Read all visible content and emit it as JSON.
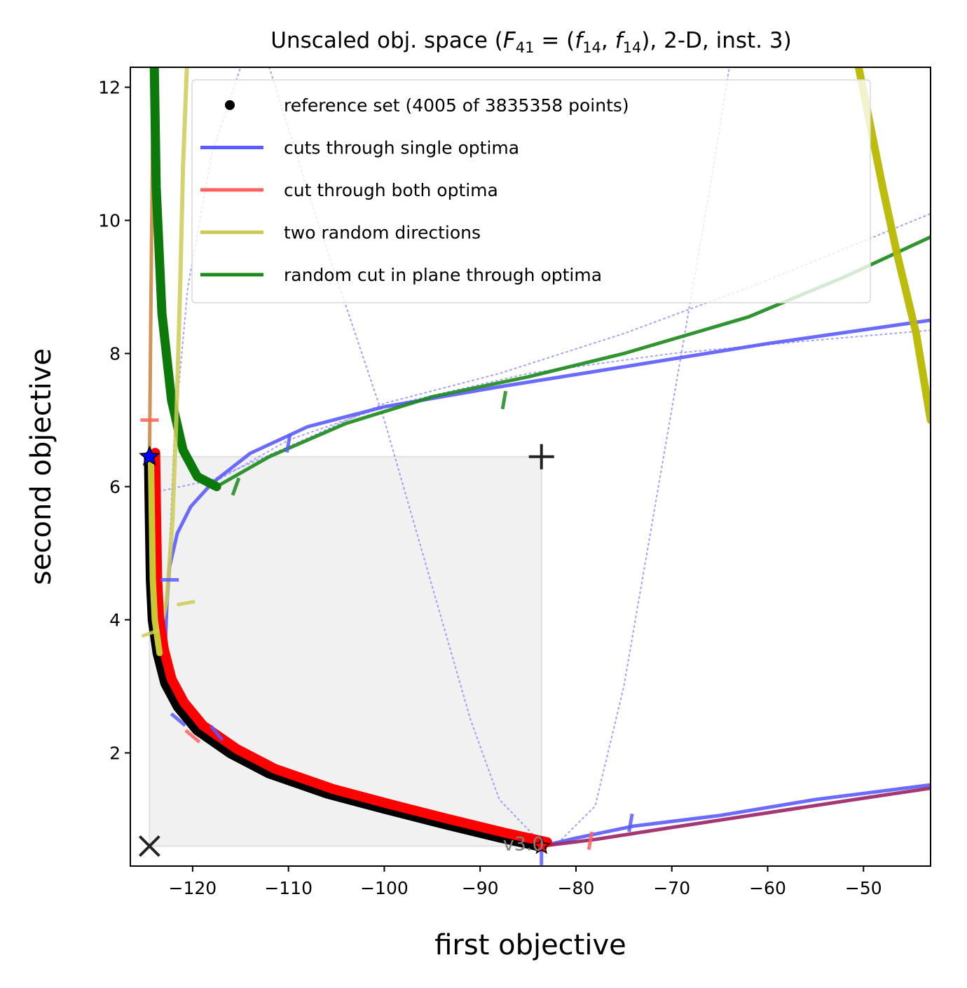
{
  "chart_data": {
    "type": "line",
    "title": "Unscaled obj. space (F41 = (f14, f14), 2-D, inst. 3)",
    "title_parts": {
      "prefix": "Unscaled obj. space (",
      "F": "F",
      "F_sub": "41",
      "eq": " = (",
      "f": "f",
      "f_sub": "14",
      "sep": ", ",
      "suffix": "), 2-D, inst. 3)"
    },
    "xlabel": "first objective",
    "ylabel": "second objective",
    "xlim": [
      -126.5,
      -43.0
    ],
    "ylim": [
      0.3,
      12.3
    ],
    "xticks": [
      -120,
      -110,
      -100,
      -90,
      -80,
      -70,
      -60,
      -50
    ],
    "xtick_labels": [
      "−120",
      "−110",
      "−100",
      "−90",
      "−80",
      "−70",
      "−60",
      "−50"
    ],
    "yticks": [
      2,
      4,
      6,
      8,
      10,
      12
    ],
    "ytick_labels": [
      "2",
      "4",
      "6",
      "8",
      "10",
      "12"
    ],
    "legend_position": "top-right",
    "legend": [
      {
        "label": "reference set (4005 of 3835358 points)",
        "style": "marker",
        "color": "#000000"
      },
      {
        "label": "cuts through single optima",
        "style": "line",
        "color": "#5b5bff"
      },
      {
        "label": "cut through both optima",
        "style": "line",
        "color": "#ff6060"
      },
      {
        "label": "two random directions",
        "style": "line",
        "color": "#cccc55"
      },
      {
        "label": "random cut in plane through optima",
        "style": "line",
        "color": "#1a8a1a"
      }
    ],
    "ideal_point": {
      "x": -124.5,
      "y": 0.6,
      "marker": "x"
    },
    "nadir_point": {
      "x": -83.6,
      "y": 6.45,
      "marker": "+"
    },
    "optimum_1": {
      "x": -124.5,
      "y": 6.45,
      "marker": "star",
      "color": "#0000ff"
    },
    "optimum_2": {
      "x": -83.6,
      "y": 0.6,
      "marker": "star",
      "color": "#ff0000"
    },
    "dominated_region": {
      "x": [
        -124.5,
        -83.6
      ],
      "y": [
        0.6,
        6.45
      ]
    },
    "version_label": "v3.0",
    "series": [
      {
        "name": "reference set (4005 of 3835358 points)",
        "kind": "pareto_front",
        "color": "#000000",
        "points": [
          [
            -124.5,
            6.45
          ],
          [
            -124.4,
            5.5
          ],
          [
            -124.3,
            4.6
          ],
          [
            -124.1,
            4.0
          ],
          [
            -123.6,
            3.5
          ],
          [
            -122.8,
            3.05
          ],
          [
            -121.5,
            2.7
          ],
          [
            -119.5,
            2.35
          ],
          [
            -116,
            2.0
          ],
          [
            -112,
            1.7
          ],
          [
            -106,
            1.4
          ],
          [
            -100,
            1.17
          ],
          [
            -94,
            0.95
          ],
          [
            -88,
            0.74
          ],
          [
            -83.6,
            0.6
          ]
        ]
      },
      {
        "name": "cuts through single optima",
        "kind": "cut_1",
        "color": "#5b5bff",
        "points": [
          [
            -122.9,
            3.4
          ],
          [
            -122.7,
            4.2
          ],
          [
            -122.4,
            4.8
          ],
          [
            -121.6,
            5.3
          ],
          [
            -120.2,
            5.7
          ],
          [
            -118,
            6.05
          ],
          [
            -114,
            6.5
          ],
          [
            -108,
            6.9
          ],
          [
            -100,
            7.2
          ],
          [
            -88,
            7.5
          ],
          [
            -75,
            7.8
          ],
          [
            -60,
            8.15
          ],
          [
            -43,
            8.5
          ]
        ]
      },
      {
        "name": "cuts through single optima",
        "kind": "cut_2",
        "color": "#5b5bff",
        "points": [
          [
            -83.6,
            0.6
          ],
          [
            -80,
            0.72
          ],
          [
            -74,
            0.9
          ],
          [
            -65,
            1.06
          ],
          [
            -55,
            1.3
          ],
          [
            -43,
            1.52
          ]
        ]
      },
      {
        "name": "cut through both optima",
        "kind": "cut_both_right",
        "color": "#9a2266",
        "points": [
          [
            -83.6,
            0.6
          ],
          [
            -78,
            0.7
          ],
          [
            -70,
            0.88
          ],
          [
            -60,
            1.1
          ],
          [
            -50,
            1.32
          ],
          [
            -43,
            1.47
          ]
        ]
      },
      {
        "name": "cut through both optima",
        "kind": "cut_both_left",
        "color": "#cc8844",
        "points": [
          [
            -124.5,
            6.45
          ],
          [
            -124.4,
            8.0
          ],
          [
            -124.3,
            9.5
          ],
          [
            -124.2,
            11.0
          ],
          [
            -124.1,
            12.3
          ]
        ]
      },
      {
        "name": "two random directions",
        "kind": "random_left",
        "color": "#cccc55",
        "points": [
          [
            -124.3,
            6.1
          ],
          [
            -124.2,
            5.0
          ],
          [
            -124.0,
            4.2
          ],
          [
            -123.4,
            3.8
          ],
          [
            -122.7,
            4.3
          ],
          [
            -122.1,
            5.5
          ],
          [
            -121.7,
            7.0
          ],
          [
            -121.3,
            9.0
          ],
          [
            -121.0,
            10.8
          ],
          [
            -120.6,
            12.3
          ]
        ]
      },
      {
        "name": "two random directions",
        "kind": "random_right",
        "color": "#b8b800",
        "points": [
          [
            -50.5,
            12.3
          ],
          [
            -48,
            10.5
          ],
          [
            -46.5,
            9.5
          ],
          [
            -44.5,
            8.3
          ],
          [
            -43,
            7.0
          ]
        ]
      },
      {
        "name": "random cut in plane through optima",
        "kind": "green_cut",
        "color": "#1a8a1a",
        "points": [
          [
            -124.0,
            12.3
          ],
          [
            -123.8,
            10.5
          ],
          [
            -123.2,
            8.6
          ],
          [
            -122.2,
            7.3
          ],
          [
            -121.0,
            6.55
          ],
          [
            -119.5,
            6.15
          ],
          [
            -117.5,
            6.0
          ],
          [
            -112,
            6.45
          ],
          [
            -104,
            6.95
          ],
          [
            -95,
            7.35
          ],
          [
            -85,
            7.65
          ],
          [
            -75,
            8.0
          ],
          [
            -62,
            8.55
          ],
          [
            -52,
            9.15
          ],
          [
            -43,
            9.75
          ]
        ]
      },
      {
        "name": "dotted cut 1",
        "kind": "dotted",
        "color": "#8a8aff",
        "points": [
          [
            -124.5,
            5.9
          ],
          [
            -118,
            6.1
          ],
          [
            -110,
            6.6
          ],
          [
            -100,
            7.25
          ],
          [
            -88,
            7.7
          ],
          [
            -75,
            8.3
          ],
          [
            -60,
            9.1
          ],
          [
            -43,
            10.1
          ]
        ]
      },
      {
        "name": "dotted cut 2",
        "kind": "dotted",
        "color": "#8a8aff",
        "points": [
          [
            -122.6,
            4.4
          ],
          [
            -121.9,
            6.8
          ],
          [
            -120.5,
            9.0
          ],
          [
            -118,
            11.0
          ],
          [
            -115,
            12.3
          ]
        ]
      },
      {
        "name": "dotted cut 3",
        "kind": "dotted",
        "color": "#8a8aff",
        "points": [
          [
            -112,
            12.3
          ],
          [
            -107,
            10.0
          ],
          [
            -100,
            7.0
          ],
          [
            -95,
            4.5
          ],
          [
            -91,
            2.5
          ],
          [
            -88,
            1.3
          ],
          [
            -84,
            0.7
          ]
        ]
      },
      {
        "name": "dotted cut 4",
        "kind": "dotted",
        "color": "#8a8aff",
        "points": [
          [
            -81.5,
            0.7
          ],
          [
            -78,
            1.2
          ],
          [
            -75,
            3.0
          ],
          [
            -72,
            5.5
          ],
          [
            -69,
            8.0
          ],
          [
            -66,
            10.5
          ],
          [
            -64,
            12.3
          ]
        ]
      },
      {
        "name": "dotted cut 5",
        "kind": "dotted",
        "color": "#8a8aff",
        "points": [
          [
            -118,
            6.05
          ],
          [
            -110,
            6.7
          ],
          [
            -100,
            7.2
          ],
          [
            -85,
            7.7
          ],
          [
            -70,
            8.0
          ],
          [
            -55,
            8.2
          ],
          [
            -43,
            8.35
          ]
        ]
      }
    ],
    "cut_markers": [
      {
        "x": -124.5,
        "y": 7.0,
        "color": "#ff6060",
        "angle": 0
      },
      {
        "x": -110,
        "y": 6.65,
        "color": "#5b5bff",
        "angle": 80
      },
      {
        "x": -87.5,
        "y": 7.3,
        "color": "#1a8a1a",
        "angle": 80
      },
      {
        "x": -115.5,
        "y": 6.0,
        "color": "#1a8a1a",
        "angle": 70
      },
      {
        "x": -122.4,
        "y": 4.6,
        "color": "#5b5bff",
        "angle": 0
      },
      {
        "x": -120.7,
        "y": 4.25,
        "color": "#cccc55",
        "angle": 10
      },
      {
        "x": -124.4,
        "y": 3.8,
        "color": "#cccc55",
        "angle": 20
      },
      {
        "x": -117.5,
        "y": 2.3,
        "color": "#5b5bff",
        "angle": -50
      },
      {
        "x": -120,
        "y": 2.25,
        "color": "#ff6060",
        "angle": -40
      },
      {
        "x": -121.5,
        "y": 2.5,
        "color": "#5b5bff",
        "angle": -40
      },
      {
        "x": -83.6,
        "y": 0.45,
        "color": "#5b5bff",
        "angle": 90
      },
      {
        "x": -78.5,
        "y": 0.68,
        "color": "#ff6060",
        "angle": 80
      },
      {
        "x": -74.3,
        "y": 0.95,
        "color": "#5b5bff",
        "angle": 80
      }
    ]
  }
}
